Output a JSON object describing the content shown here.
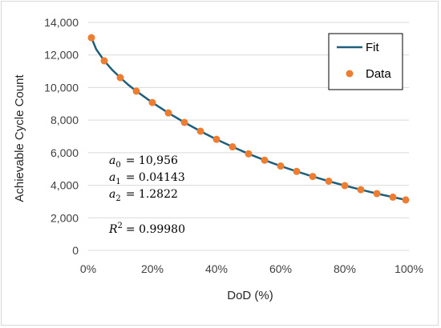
{
  "chart_data": {
    "type": "scatter",
    "xlabel": "DoD (%)",
    "ylabel": "Achievable Cycle Count",
    "xlim": [
      0,
      1
    ],
    "ylim": [
      0,
      14000
    ],
    "x_ticks": [
      0,
      0.2,
      0.4,
      0.6,
      0.8,
      1.0
    ],
    "x_tick_labels": [
      "0%",
      "20%",
      "40%",
      "60%",
      "80%",
      "100%"
    ],
    "y_ticks": [
      0,
      2000,
      4000,
      6000,
      8000,
      10000,
      12000,
      14000
    ],
    "y_tick_labels": [
      "0",
      "2,000",
      "4,000",
      "6,000",
      "8,000",
      "10,000",
      "12,000",
      "14,000"
    ],
    "grid": "horizontal",
    "legend": {
      "position": "top-right",
      "entries": [
        "Fit",
        "Data"
      ]
    },
    "series": [
      {
        "name": "Fit",
        "kind": "line",
        "color": "#1f5f7a",
        "x": [
          0.01,
          0.025,
          0.05,
          0.075,
          0.1,
          0.125,
          0.15,
          0.2,
          0.25,
          0.3,
          0.35,
          0.4,
          0.45,
          0.5,
          0.55,
          0.6,
          0.65,
          0.7,
          0.75,
          0.8,
          0.85,
          0.9,
          0.95,
          0.99
        ],
        "y": [
          13060,
          12350,
          11640,
          11080,
          10610,
          10170,
          9780,
          9080,
          8440,
          7860,
          7320,
          6820,
          6360,
          5930,
          5540,
          5180,
          4850,
          4540,
          4250,
          3980,
          3730,
          3490,
          3270,
          3100
        ]
      },
      {
        "name": "Data",
        "kind": "scatter",
        "color": "#ed7d31",
        "x": [
          0.01,
          0.05,
          0.1,
          0.15,
          0.2,
          0.25,
          0.3,
          0.35,
          0.4,
          0.45,
          0.5,
          0.55,
          0.6,
          0.65,
          0.7,
          0.75,
          0.8,
          0.85,
          0.9,
          0.95,
          0.99
        ],
        "y": [
          13060,
          11640,
          10610,
          9780,
          9080,
          8440,
          7860,
          7320,
          6820,
          6360,
          5930,
          5540,
          5180,
          4850,
          4540,
          4250,
          3980,
          3730,
          3490,
          3270,
          3100
        ]
      }
    ],
    "annotations": [
      {
        "sym": "a",
        "sub": "0",
        "rhs": "= 10,956"
      },
      {
        "sym": "a",
        "sub": "1",
        "rhs": "= 0.04143"
      },
      {
        "sym": "a",
        "sub": "2",
        "rhs": "= 1.2822"
      },
      {
        "sym": "R",
        "sup": "2",
        "rhs": "= 0.99980"
      }
    ]
  }
}
